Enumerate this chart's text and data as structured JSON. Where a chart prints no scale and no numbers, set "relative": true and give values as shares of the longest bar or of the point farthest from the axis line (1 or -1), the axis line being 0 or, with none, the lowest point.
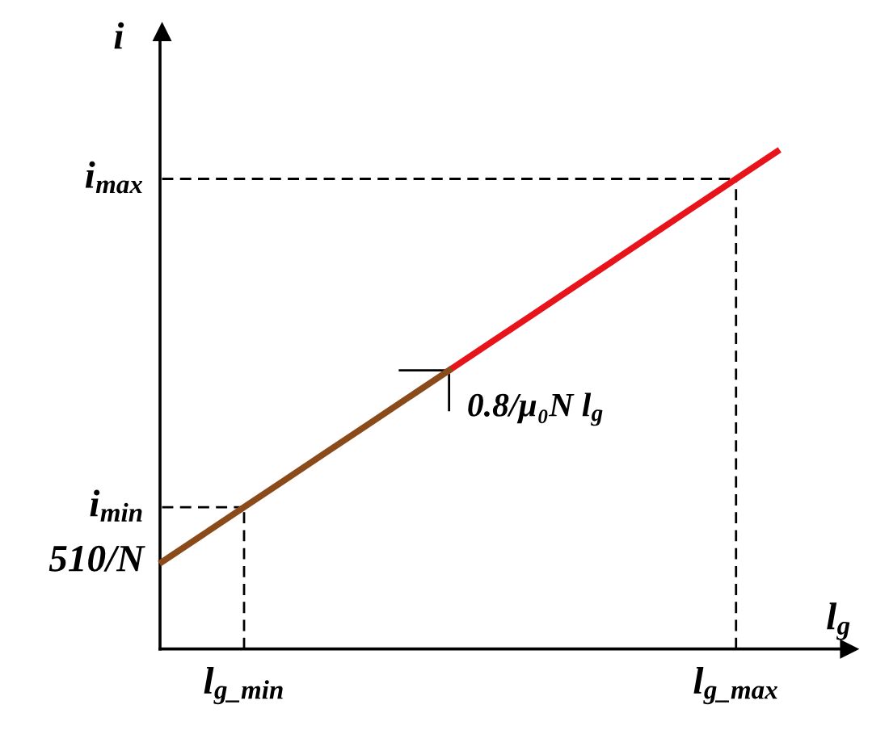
{
  "chart_data": {
    "type": "line",
    "relative": true,
    "xlabel": "l$_{g}$",
    "ylabel": "i",
    "categories": [
      null,
      null,
      "l$_{g_min}$",
      null,
      null,
      null,
      null,
      null,
      null,
      null,
      null,
      null,
      null,
      null,
      "l$_{g_max}$",
      null
    ],
    "series": [
      {
        "color": "#e8141c",
        "values": [
          null,
          null,
          null,
          null,
          null,
          null,
          null,
          0.56,
          0.615,
          0.67,
          0.725,
          0.78,
          0.835,
          0.89,
          0.945,
          1.0
        ]
      },
      {
        "color": "#8b4a1a",
        "values": [
          0.175,
          0.23,
          0.285,
          0.34,
          0.395,
          0.45,
          0.505,
          0.56,
          null,
          null,
          null,
          null,
          null,
          null,
          null,
          null
        ]
      }
    ],
    "ref_lines": [
      {
        "axis": "y",
        "value": 0.285,
        "label": "i$_{min}$",
        "line_style": "dashed",
        "color": "#000000"
      },
      {
        "axis": "y",
        "value": 0.945,
        "label": "i$_{max}$",
        "line_style": "dashed",
        "color": "#000000"
      },
      {
        "axis": "x",
        "value": "l$_{g_min}$",
        "line_style": "dashed",
        "color": "#000000"
      },
      {
        "axis": "x",
        "value": "l$_{g_max}$",
        "line_style": "dashed",
        "color": "#000000"
      }
    ],
    "annotations": [
      "510/N",
      "0.8/μ₀N l$_{g}$"
    ]
  }
}
